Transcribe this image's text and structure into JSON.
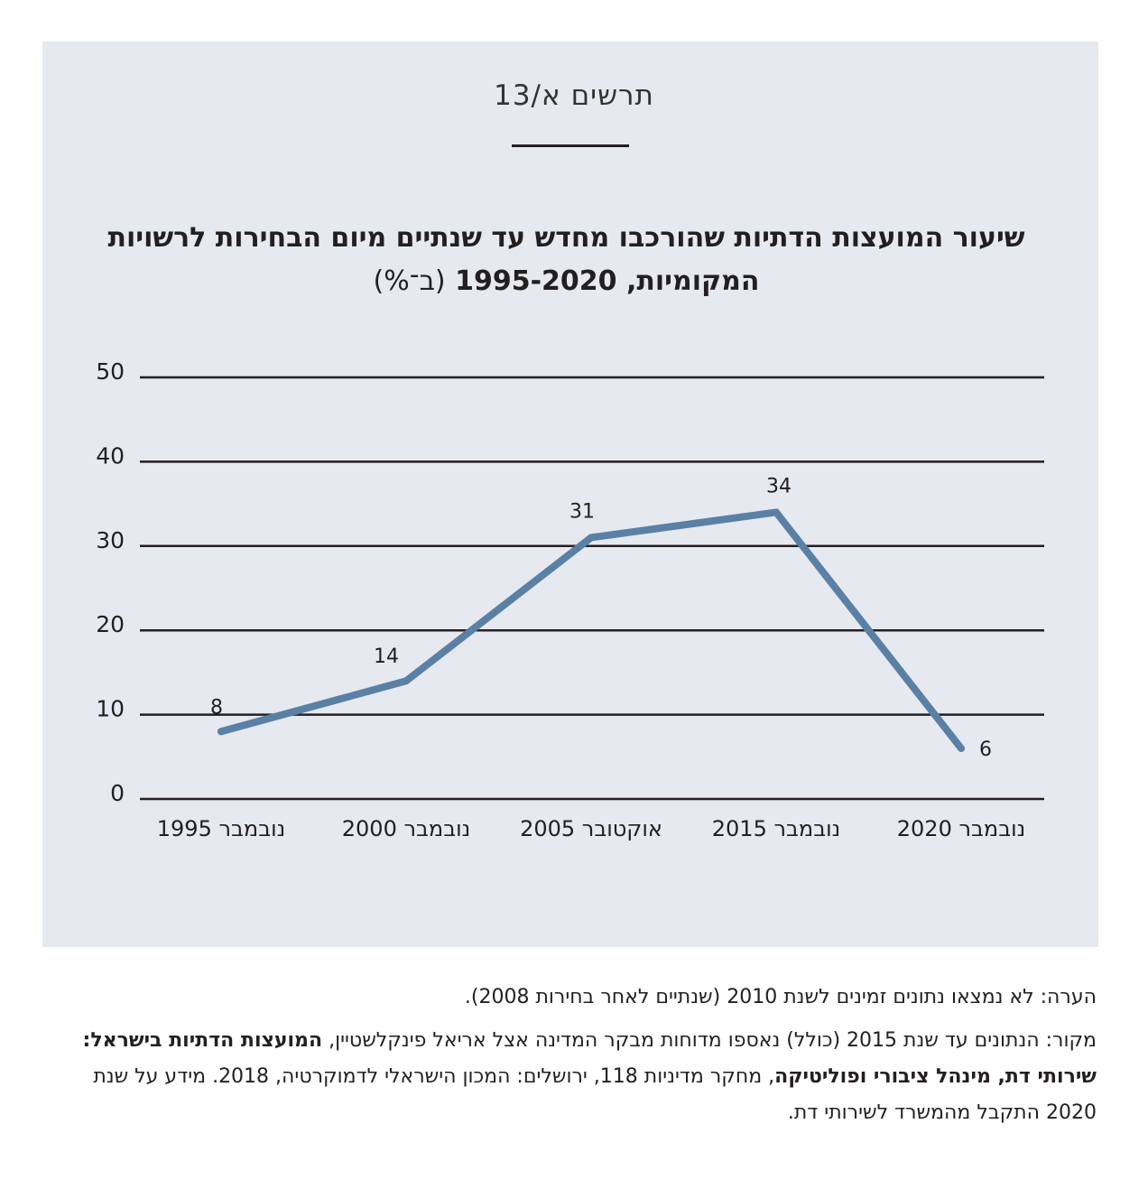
{
  "figure_label": "תרשים א/13",
  "chart_data": {
    "type": "line",
    "title_main": "שיעור המועצות הדתיות שהורכבו מחדש עד שנתיים מיום הבחירות לרשויות המקומיות, 1995-2020",
    "title_unit": "(ב־%)",
    "categories": [
      "נובמבר 1995",
      "נובמבר 2000",
      "אוקטובר 2005",
      "נובמבר 2015",
      "נובמבר 2020"
    ],
    "values": [
      8,
      14,
      31,
      34,
      6
    ],
    "value_labels": [
      "8",
      "14",
      "31",
      "34",
      "6"
    ],
    "yticks": [
      "0",
      "10",
      "20",
      "30",
      "40",
      "50"
    ],
    "ylim": [
      0,
      50
    ],
    "grid": true,
    "line_color": "#5b80a5",
    "grid_color": "#231f20",
    "background_color": "#e6e9ef"
  },
  "notes": {
    "note": "הערה: לא נמצאו נתונים זמינים לשנת 2010 (שנתיים לאחר בחירות 2008).",
    "source_prefix": "מקור: הנתונים עד שנת 2015 (כולל) נאספו מדוחות מבקר המדינה אצל אריאל פינקלשטיין,",
    "source_bold": "המועצות הדתיות בישראל: שירותי דת, מינהל ציבורי ופוליטיקה",
    "source_suffix": ", מחקר מדיניות 118, ירושלים: המכון הישראלי לדמוקרטיה, 2018. מידע על שנת 2020 התקבל מהמשרד לשירותי דת."
  }
}
